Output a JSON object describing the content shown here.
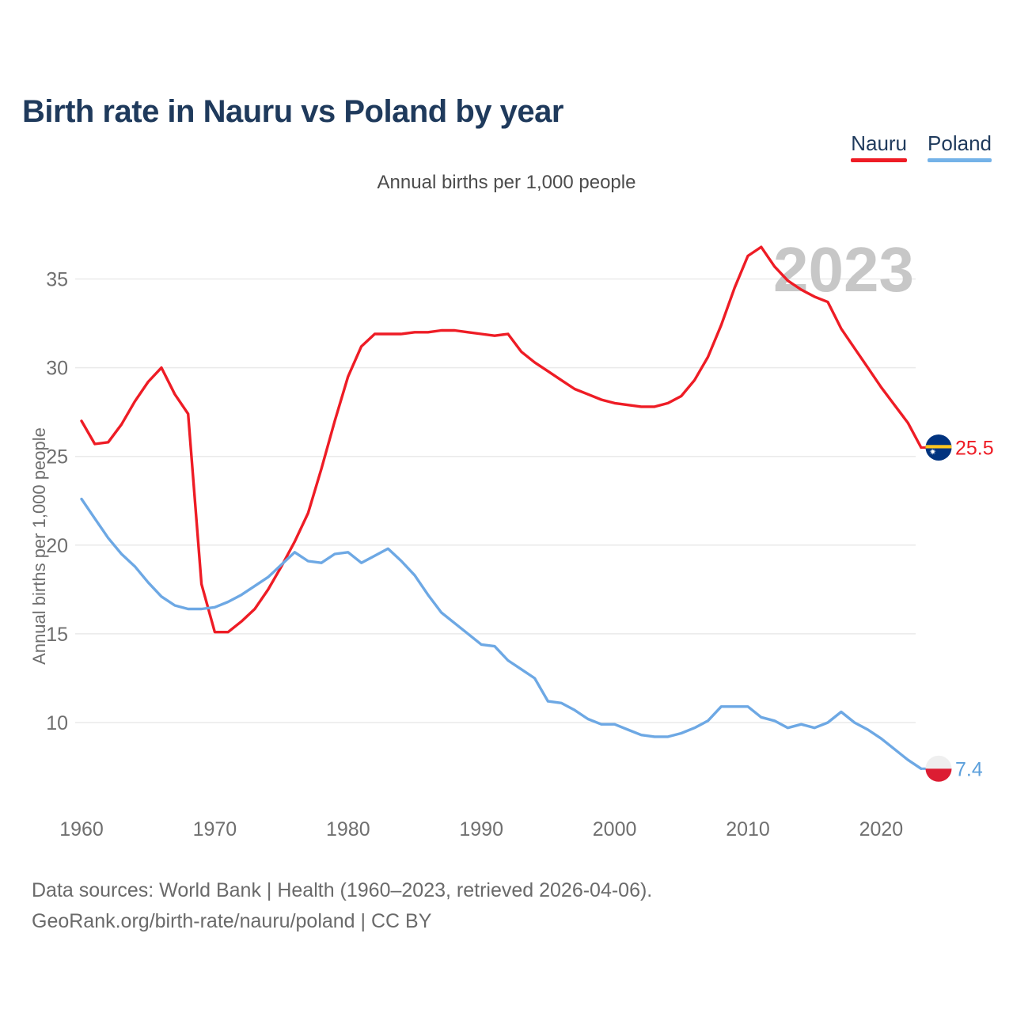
{
  "header": {
    "title": "Birth rate in Nauru vs Poland by year"
  },
  "legend": {
    "items": [
      {
        "label": "Nauru",
        "color": "#ee1c25"
      },
      {
        "label": "Poland",
        "color": "#74b2e8"
      }
    ]
  },
  "chart": {
    "subtitle": "Annual births per 1,000 people",
    "y_axis_title": "Annual births per 1,000 people",
    "watermark": "2023"
  },
  "chart_data": {
    "type": "line",
    "title": "Birth rate in Nauru vs Poland by year",
    "ylabel": "Annual births per 1,000 people",
    "grid": "horizontal-only",
    "legend_position": "top-right",
    "watermark": "2023",
    "x_ticks": [
      1960,
      1970,
      1980,
      1990,
      2000,
      2010,
      2020
    ],
    "y_ticks": [
      10,
      15,
      20,
      25,
      30,
      35
    ],
    "xlim": [
      1960,
      2023
    ],
    "ylim": [
      7,
      38
    ],
    "x": [
      1960,
      1961,
      1962,
      1963,
      1964,
      1965,
      1966,
      1967,
      1968,
      1969,
      1970,
      1971,
      1972,
      1973,
      1974,
      1975,
      1976,
      1977,
      1978,
      1979,
      1980,
      1981,
      1982,
      1983,
      1984,
      1985,
      1986,
      1987,
      1988,
      1989,
      1990,
      1991,
      1992,
      1993,
      1994,
      1995,
      1996,
      1997,
      1998,
      1999,
      2000,
      2001,
      2002,
      2003,
      2004,
      2005,
      2006,
      2007,
      2008,
      2009,
      2010,
      2011,
      2012,
      2013,
      2014,
      2015,
      2016,
      2017,
      2018,
      2019,
      2020,
      2021,
      2022,
      2023
    ],
    "series": [
      {
        "name": "Nauru",
        "color": "#ee1c25",
        "label_color": "#ee1c25",
        "flag": "nauru",
        "flag_colors": [
          "#01337f",
          "#ffc61e",
          "#ffffff"
        ],
        "end_label": "25.5",
        "values": [
          27.0,
          25.7,
          25.8,
          26.8,
          28.1,
          29.2,
          30.0,
          28.5,
          27.4,
          17.8,
          15.1,
          15.1,
          15.7,
          16.4,
          17.5,
          18.8,
          20.2,
          21.8,
          24.3,
          27.0,
          29.5,
          31.2,
          31.9,
          31.9,
          31.9,
          32.0,
          32.0,
          32.1,
          32.1,
          32.0,
          31.9,
          31.8,
          31.9,
          30.9,
          30.3,
          29.8,
          29.3,
          28.8,
          28.5,
          28.2,
          28.0,
          27.9,
          27.8,
          27.8,
          28.0,
          28.4,
          29.3,
          30.6,
          32.4,
          34.5,
          36.3,
          36.8,
          35.7,
          34.9,
          34.4,
          34.0,
          33.7,
          32.2,
          31.1,
          30.0,
          28.9,
          27.9,
          26.9,
          25.5
        ]
      },
      {
        "name": "Poland",
        "color": "#6da8e4",
        "label_color": "#5b9fdb",
        "flag": "poland",
        "flag_colors": [
          "#efefef",
          "#dc1d33"
        ],
        "end_label": "7.4",
        "values": [
          22.6,
          21.5,
          20.4,
          19.5,
          18.8,
          17.9,
          17.1,
          16.6,
          16.4,
          16.4,
          16.5,
          16.8,
          17.2,
          17.7,
          18.2,
          18.9,
          19.6,
          19.1,
          19.0,
          19.5,
          19.6,
          19.0,
          19.4,
          19.8,
          19.1,
          18.3,
          17.2,
          16.2,
          15.6,
          15.0,
          14.4,
          14.3,
          13.5,
          13.0,
          12.5,
          11.2,
          11.1,
          10.7,
          10.2,
          9.9,
          9.9,
          9.6,
          9.3,
          9.2,
          9.2,
          9.4,
          9.7,
          10.1,
          10.9,
          10.9,
          10.9,
          10.3,
          10.1,
          9.7,
          9.9,
          9.7,
          10.0,
          10.6,
          10.0,
          9.6,
          9.1,
          8.5,
          7.9,
          7.4
        ]
      }
    ]
  },
  "footer": {
    "line1": "Data sources: World Bank | Health (1960–2023, retrieved 2026-04-06).",
    "line2": "GeoRank.org/birth-rate/nauru/poland | CC BY"
  }
}
